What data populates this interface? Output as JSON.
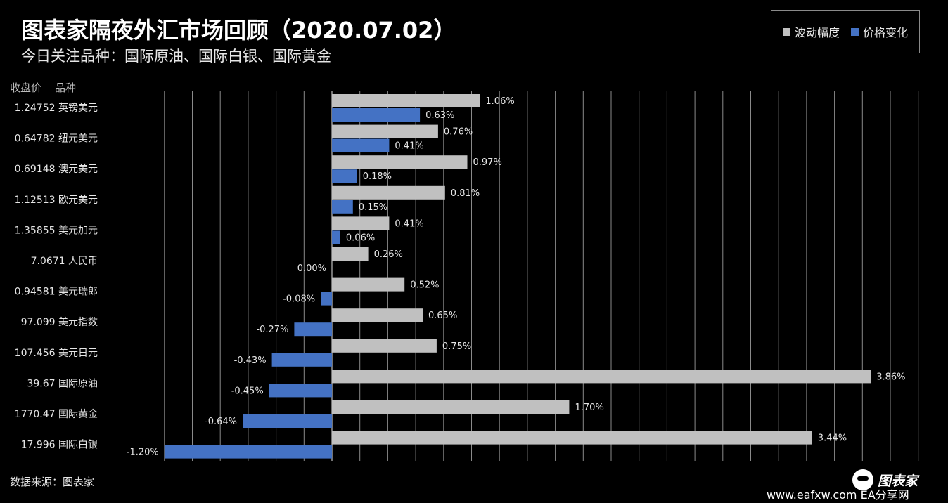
{
  "header": {
    "title": "图表家隔夜外汇市场回顾（2020.07.02）",
    "subtitle": "今日关注品种：国际原油、国际白银、国际黄金"
  },
  "columns": {
    "price": "收盘价",
    "product": "品种"
  },
  "footer": {
    "source": "数据来源：图表家",
    "logo_text": "图表家",
    "watermark": "www.eafxw.com  EA分享网"
  },
  "colors": {
    "volatility": "#c0c0c0",
    "price_change": "#4472c4",
    "grid": "#8a8a8a"
  },
  "chart_data": {
    "type": "bar",
    "orientation": "horizontal",
    "title": "",
    "xlabel": "",
    "ylabel": "",
    "xlim": [
      -3,
      5.2
    ],
    "grid": true,
    "legend_position": "top-right",
    "categories": [
      {
        "price": "1.24752",
        "name": "英镑美元"
      },
      {
        "price": "0.64782",
        "name": "纽元美元"
      },
      {
        "price": "0.69148",
        "name": "澳元美元"
      },
      {
        "price": "1.12513",
        "name": "欧元美元"
      },
      {
        "price": "1.35855",
        "name": "美元加元"
      },
      {
        "price": "7.0671",
        "name": "人民币"
      },
      {
        "price": "0.94581",
        "name": "美元瑞郎"
      },
      {
        "price": "97.099",
        "name": "美元指数"
      },
      {
        "price": "107.456",
        "name": "美元日元"
      },
      {
        "price": "39.67",
        "name": "国际原油"
      },
      {
        "price": "1770.47",
        "name": "国际黄金"
      },
      {
        "price": "17.996",
        "name": "国际白银"
      }
    ],
    "series": [
      {
        "name": "波动幅度",
        "values": [
          1.06,
          0.76,
          0.97,
          0.81,
          0.41,
          0.26,
          0.52,
          0.65,
          0.75,
          3.86,
          1.7,
          3.44
        ],
        "labels": [
          "1.06%",
          "0.76%",
          "0.97%",
          "0.81%",
          "0.41%",
          "0.26%",
          "0.52%",
          "0.65%",
          "0.75%",
          "3.86%",
          "1.70%",
          "3.44%"
        ]
      },
      {
        "name": "价格变化",
        "values": [
          0.63,
          0.41,
          0.18,
          0.15,
          0.06,
          0.0,
          -0.08,
          -0.27,
          -0.43,
          -0.45,
          -0.64,
          -1.2
        ],
        "labels": [
          "0.63%",
          "0.41%",
          "0.18%",
          "0.15%",
          "0.06%",
          "0.00%",
          "-0.08%",
          "-0.27%",
          "-0.43%",
          "-0.45%",
          "-0.64%",
          "-1.20%"
        ]
      }
    ]
  }
}
